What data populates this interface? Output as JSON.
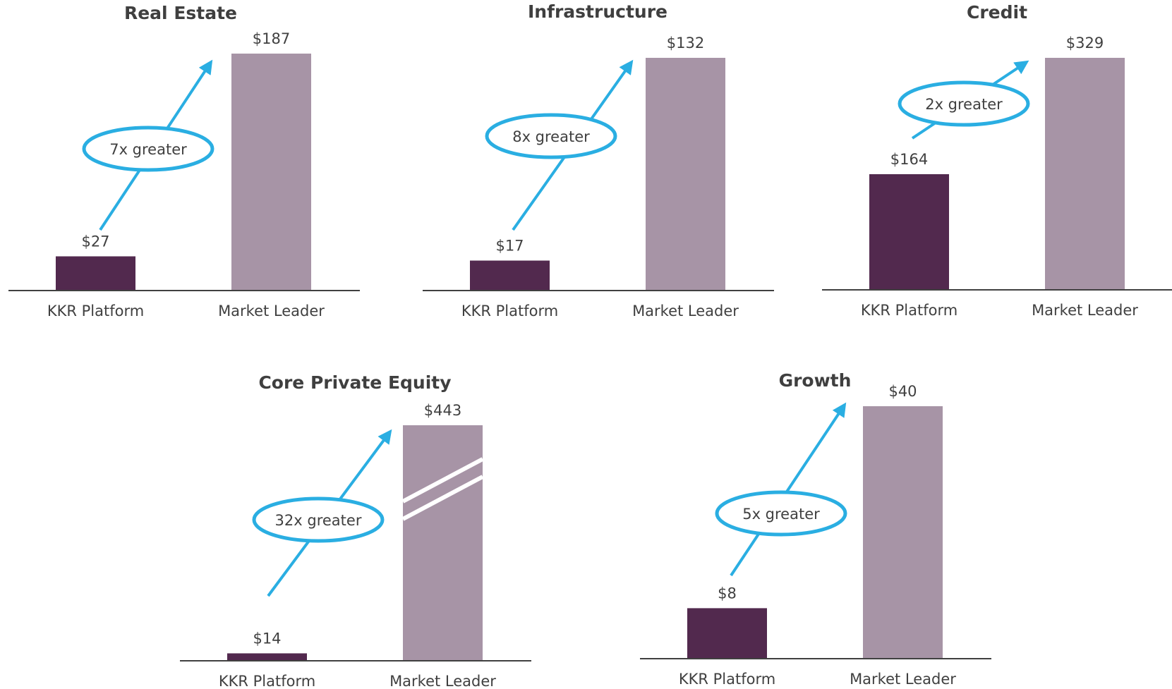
{
  "colors": {
    "kkr_bar": "#52294e",
    "leader_bar": "#a794a6",
    "arrow": "#2aaee2",
    "axis": "#404040",
    "text": "#404040"
  },
  "chart_data": [
    {
      "type": "bar",
      "title": "Real Estate",
      "categories": [
        "KKR Platform",
        "Market Leader"
      ],
      "values": [
        27,
        187
      ],
      "value_labels": [
        "$27",
        "$187"
      ],
      "callout": "7x greater",
      "ylim": [
        0,
        187
      ],
      "axis_break": false
    },
    {
      "type": "bar",
      "title": "Infrastructure",
      "categories": [
        "KKR Platform",
        "Market Leader"
      ],
      "values": [
        17,
        132
      ],
      "value_labels": [
        "$17",
        "$132"
      ],
      "callout": "8x greater",
      "ylim": [
        0,
        132
      ],
      "axis_break": false
    },
    {
      "type": "bar",
      "title": "Credit",
      "categories": [
        "KKR Platform",
        "Market Leader"
      ],
      "values": [
        164,
        329
      ],
      "value_labels": [
        "$164",
        "$329"
      ],
      "callout": "2x greater",
      "ylim": [
        0,
        329
      ],
      "axis_break": false
    },
    {
      "type": "bar",
      "title": "Core Private Equity",
      "categories": [
        "KKR Platform",
        "Market Leader"
      ],
      "values": [
        14,
        443
      ],
      "value_labels": [
        "$14",
        "$443"
      ],
      "callout": "32x greater",
      "ylim": [
        0,
        443
      ],
      "axis_break": true
    },
    {
      "type": "bar",
      "title": "Growth",
      "categories": [
        "KKR Platform",
        "Market Leader"
      ],
      "values": [
        8,
        40
      ],
      "value_labels": [
        "$8",
        "$40"
      ],
      "callout": "5x greater",
      "ylim": [
        0,
        40
      ],
      "axis_break": false
    }
  ]
}
